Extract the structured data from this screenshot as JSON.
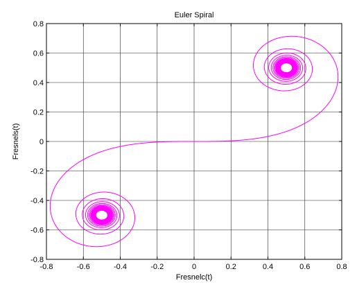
{
  "chart_data": {
    "type": "line",
    "title": "Euler Spiral",
    "xlabel": "Fresnelc(t)",
    "ylabel": "Fresnels(t)",
    "xlim": [
      -0.8,
      0.8
    ],
    "ylim": [
      -0.8,
      0.8
    ],
    "grid": true,
    "x_ticks": [
      -0.8,
      -0.6,
      -0.4,
      -0.2,
      0,
      0.2,
      0.4,
      0.6,
      0.8
    ],
    "y_ticks": [
      -0.8,
      -0.6,
      -0.4,
      -0.2,
      0,
      0.2,
      0.4,
      0.6,
      0.8
    ],
    "x_tick_labels": [
      "-0.8",
      "-0.6",
      "-0.4",
      "-0.2",
      "0",
      "0.2",
      "0.4",
      "0.6",
      "0.8"
    ],
    "y_tick_labels": [
      "-0.8",
      "-0.6",
      "-0.4",
      "-0.2",
      "0",
      "0.2",
      "0.4",
      "0.6",
      "0.8"
    ],
    "series": [
      {
        "color": "#ff00ff",
        "function": "Fresnel integrals C(t), S(t)",
        "t_range": [
          -10,
          10
        ],
        "x": [
          -0.5,
          -0.513,
          -0.536,
          -0.564,
          -0.601,
          -0.66,
          -0.72,
          -0.78,
          -0.77,
          -0.69,
          -0.5,
          -0.35,
          -0.2,
          -0.1,
          0,
          0.1,
          0.2,
          0.35,
          0.5,
          0.69,
          0.77,
          0.78,
          0.72,
          0.66,
          0.601,
          0.564,
          0.536,
          0.513,
          0.5
        ],
        "y": [
          -0.5,
          -0.528,
          -0.555,
          -0.619,
          -0.655,
          -0.71,
          -0.74,
          -0.42,
          -0.3,
          -0.14,
          -0.06,
          -0.03,
          -0.006,
          0,
          0,
          0,
          0.006,
          0.03,
          0.06,
          0.14,
          0.3,
          0.42,
          0.74,
          0.71,
          0.655,
          0.619,
          0.555,
          0.528,
          0.5
        ]
      }
    ]
  }
}
